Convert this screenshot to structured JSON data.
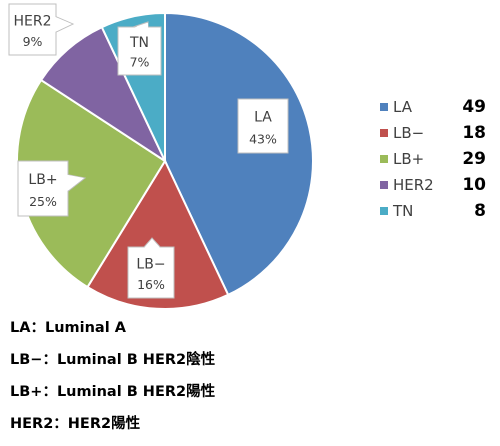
{
  "chart_data": {
    "type": "pie",
    "categories": [
      "LA",
      "LB−",
      "LB+",
      "HER2",
      "TN"
    ],
    "values": [
      49,
      18,
      29,
      10,
      8
    ],
    "percent_labels": [
      "43%",
      "16%",
      "25%",
      "9%",
      "7%"
    ],
    "colors": [
      "#4F81BD",
      "#C0504D",
      "#9BBB59",
      "#8064A2",
      "#4BACC6"
    ],
    "legend_position": "right"
  },
  "legend": [
    {
      "label": "LA",
      "value": "49",
      "color": "#4F81BD"
    },
    {
      "label": "LB−",
      "value": "18",
      "color": "#C0504D"
    },
    {
      "label": "LB+",
      "value": "29",
      "color": "#9BBB59"
    },
    {
      "label": "HER2",
      "value": "10",
      "color": "#8064A2"
    },
    {
      "label": "TN",
      "value": "8",
      "color": "#4BACC6"
    }
  ],
  "notes": [
    "LA：Luminal A",
    "LB−：Luminal B HER2陰性",
    "LB+：Luminal B HER2陽性",
    "HER2：HER2陽性"
  ]
}
